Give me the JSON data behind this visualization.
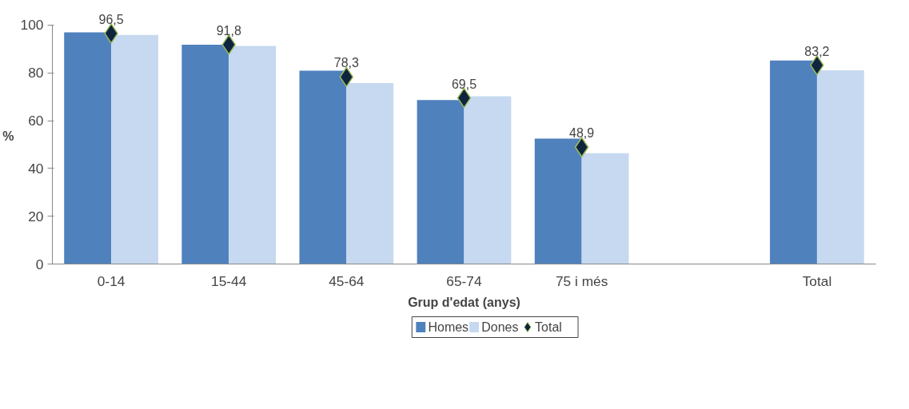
{
  "chart_data": {
    "type": "bar",
    "xlabel": "Grup d'edat (anys)",
    "ylabel": "%",
    "categories": [
      "0-14",
      "15-44",
      "45-64",
      "65-74",
      "75 i més",
      null,
      "Total"
    ],
    "series": [
      {
        "name": "Homes",
        "color": "#4f81bd",
        "values": [
          97.0,
          91.8,
          80.9,
          68.6,
          52.5,
          null,
          85.2
        ]
      },
      {
        "name": "Dones",
        "color": "#c6d9f0",
        "values": [
          95.9,
          91.3,
          75.7,
          70.2,
          46.4,
          null,
          81.1
        ]
      },
      {
        "name": "Total",
        "type": "scatter",
        "marker": "diamond",
        "color": "#0f243e",
        "values": [
          96.5,
          91.8,
          78.3,
          69.5,
          48.9,
          null,
          83.2
        ],
        "value_labels": [
          "96,5",
          "91,8",
          "78,3",
          "69,5",
          "48,9",
          null,
          "83,2"
        ]
      }
    ],
    "ylim": [
      0,
      100
    ],
    "yticks": [
      0,
      20,
      40,
      60,
      80,
      100
    ],
    "grid": false,
    "legend": "bottom"
  }
}
